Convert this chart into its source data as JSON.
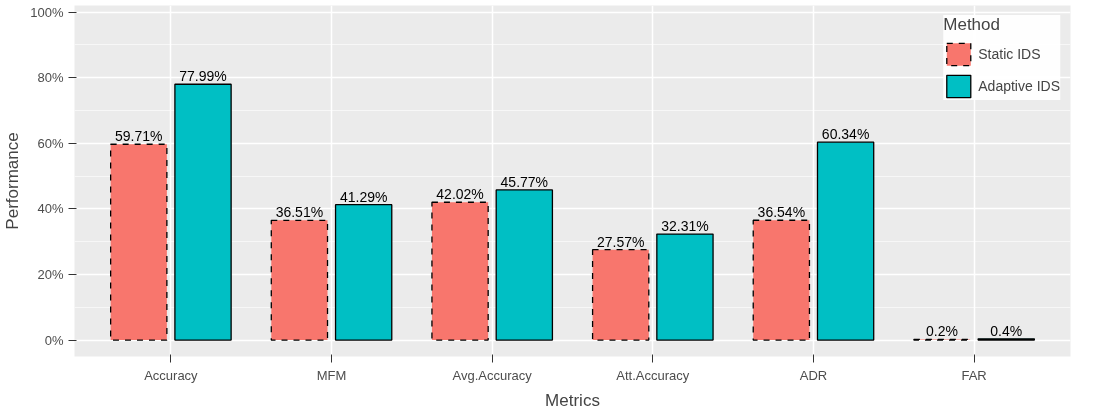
{
  "chart_data": {
    "type": "bar",
    "xlabel": "Metrics",
    "ylabel": "Performance",
    "legend_title": "Method",
    "categories": [
      "Accuracy",
      "MFM",
      "Avg.Accuracy",
      "Att.Accuracy",
      "ADR",
      "FAR"
    ],
    "series": [
      {
        "name": "Static IDS",
        "color": "#f8766d",
        "line_style": "dashed",
        "values": [
          59.71,
          36.51,
          42.02,
          27.57,
          36.54,
          0.2
        ],
        "value_labels": [
          "59.71%",
          "36.51%",
          "42.02%",
          "27.57%",
          "36.54%",
          "0.2%"
        ]
      },
      {
        "name": "Adaptive IDS",
        "color": "#00bfc4",
        "line_style": "solid",
        "values": [
          77.99,
          41.29,
          45.77,
          32.31,
          60.34,
          0.4
        ],
        "value_labels": [
          "77.99%",
          "41.29%",
          "45.77%",
          "32.31%",
          "60.34%",
          "0.4%"
        ]
      }
    ],
    "ylim": [
      -5,
      102
    ],
    "yticks": [
      {
        "value": 0,
        "label": "0%"
      },
      {
        "value": 20,
        "label": "20%"
      },
      {
        "value": 40,
        "label": "40%"
      },
      {
        "value": 60,
        "label": "60%"
      },
      {
        "value": 80,
        "label": "80%"
      },
      {
        "value": 100,
        "label": "100%"
      }
    ],
    "grid": true,
    "legend": "top right"
  }
}
